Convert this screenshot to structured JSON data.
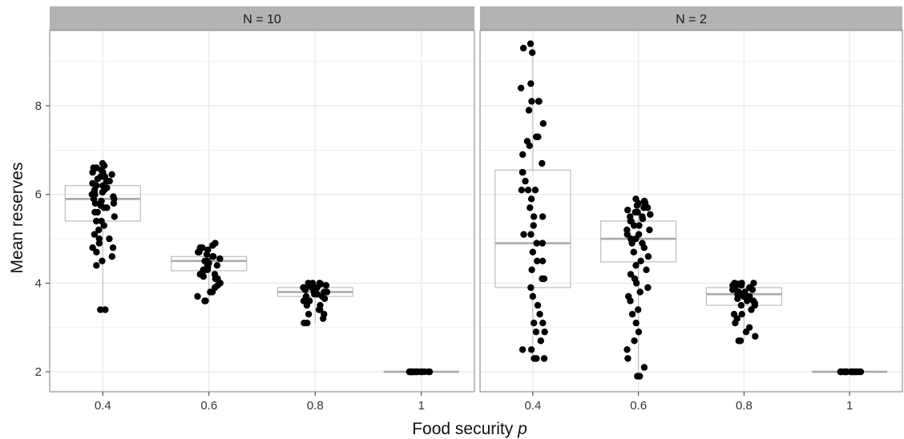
{
  "chart_data": {
    "type": "box-with-jitter",
    "xlabel": "Food security",
    "xlabel_symbol": "p",
    "ylabel": "Mean reserves",
    "ylim": [
      1.55,
      9.7
    ],
    "yticks": [
      2,
      4,
      6,
      8
    ],
    "ytick_labels": [
      "2",
      "4",
      "6",
      "8"
    ],
    "categories": [
      "0.4",
      "0.6",
      "0.8",
      "1"
    ],
    "grid": true,
    "colors": {
      "strip_bg": "#b3b3b3",
      "panel_border": "#7f7f7f",
      "grid": "#ebebeb",
      "box_line": "#bdbdbd",
      "median_line": "#a9a9a9",
      "point": "#000000"
    },
    "panels": [
      {
        "title": "N = 10",
        "boxes": [
          {
            "category": "0.4",
            "q1": 5.4,
            "median": 5.9,
            "q3": 6.2,
            "whisker_low": 3.4,
            "whisker_high": 6.7
          },
          {
            "category": "0.6",
            "q1": 4.28,
            "median": 4.5,
            "q3": 4.6,
            "whisker_low": 3.6,
            "whisker_high": 4.9
          },
          {
            "category": "0.8",
            "q1": 3.7,
            "median": 3.8,
            "q3": 3.9,
            "whisker_low": 3.1,
            "whisker_high": 4.0
          },
          {
            "category": "1",
            "q1": 2.0,
            "median": 2.0,
            "q3": 2.0,
            "whisker_low": 2.0,
            "whisker_high": 2.0
          }
        ],
        "points": [
          {
            "category": "0.4",
            "values": [
              6.7,
              6.65,
              6.6,
              6.6,
              6.55,
              6.5,
              6.5,
              6.45,
              6.4,
              6.4,
              6.35,
              6.3,
              6.3,
              6.25,
              6.2,
              6.2,
              6.15,
              6.1,
              6.1,
              6.05,
              6.0,
              6.0,
              5.95,
              5.9,
              5.9,
              5.85,
              5.8,
              5.8,
              5.75,
              5.7,
              5.7,
              5.6,
              5.6,
              5.5,
              5.4,
              5.4,
              5.3,
              5.2,
              5.1,
              5.0,
              5.0,
              4.9,
              4.8,
              4.8,
              4.7,
              4.6,
              4.5,
              4.4,
              3.4,
              3.4
            ]
          },
          {
            "category": "0.6",
            "values": [
              4.9,
              4.85,
              4.8,
              4.8,
              4.75,
              4.7,
              4.7,
              4.65,
              4.6,
              4.6,
              4.55,
              4.5,
              4.5,
              4.45,
              4.4,
              4.4,
              4.35,
              4.3,
              4.3,
              4.25,
              4.2,
              4.2,
              4.15,
              4.1,
              4.1,
              4.0,
              4.0,
              3.95,
              3.9,
              3.8,
              3.8,
              3.7,
              3.6,
              3.6
            ]
          },
          {
            "category": "0.8",
            "values": [
              4.0,
              4.0,
              4.0,
              3.98,
              3.95,
              3.95,
              3.9,
              3.9,
              3.9,
              3.85,
              3.85,
              3.8,
              3.8,
              3.8,
              3.75,
              3.75,
              3.7,
              3.7,
              3.65,
              3.6,
              3.6,
              3.5,
              3.5,
              3.4,
              3.4,
              3.3,
              3.3,
              3.2,
              3.1,
              3.1
            ]
          },
          {
            "category": "1",
            "values": [
              2.0,
              2.0,
              2.0,
              2.0,
              2.0,
              2.0,
              2.0,
              2.0,
              2.0,
              2.0,
              2.0,
              2.0,
              2.0,
              2.0,
              2.0,
              2.0,
              2.0,
              2.0,
              2.0,
              2.0
            ]
          }
        ]
      },
      {
        "title": "N = 2",
        "boxes": [
          {
            "category": "0.4",
            "q1": 3.9,
            "median": 4.9,
            "q3": 6.55,
            "whisker_low": 2.3,
            "whisker_high": 9.4
          },
          {
            "category": "0.6",
            "q1": 4.48,
            "median": 5.0,
            "q3": 5.4,
            "whisker_low": 1.9,
            "whisker_high": 5.9
          },
          {
            "category": "0.8",
            "q1": 3.5,
            "median": 3.75,
            "q3": 3.9,
            "whisker_low": 2.7,
            "whisker_high": 4.0
          },
          {
            "category": "1",
            "q1": 2.0,
            "median": 2.0,
            "q3": 2.0,
            "whisker_low": 2.0,
            "whisker_high": 2.0
          }
        ],
        "points": [
          {
            "category": "0.4",
            "values": [
              9.4,
              9.3,
              9.2,
              8.5,
              8.4,
              8.1,
              8.1,
              8.1,
              7.9,
              7.6,
              7.3,
              7.3,
              7.2,
              7.1,
              6.9,
              6.7,
              6.5,
              6.5,
              6.3,
              6.1,
              6.1,
              6.1,
              5.9,
              5.7,
              5.5,
              5.5,
              5.3,
              5.1,
              5.1,
              4.9,
              4.9,
              4.7,
              4.5,
              4.5,
              4.3,
              4.1,
              4.1,
              3.9,
              3.7,
              3.5,
              3.3,
              3.1,
              3.1,
              2.9,
              2.9,
              2.7,
              2.5,
              2.5,
              2.3,
              2.3,
              2.3
            ]
          },
          {
            "category": "0.6",
            "values": [
              5.9,
              5.85,
              5.8,
              5.8,
              5.75,
              5.7,
              5.7,
              5.65,
              5.6,
              5.6,
              5.55,
              5.5,
              5.5,
              5.45,
              5.4,
              5.4,
              5.3,
              5.3,
              5.2,
              5.2,
              5.1,
              5.1,
              5.0,
              5.0,
              4.9,
              4.9,
              4.8,
              4.7,
              4.6,
              4.5,
              4.4,
              4.3,
              4.2,
              4.1,
              4.0,
              3.9,
              3.8,
              3.7,
              3.6,
              3.4,
              3.3,
              3.1,
              2.9,
              2.7,
              2.5,
              2.3,
              2.1,
              1.9,
              1.9
            ]
          },
          {
            "category": "0.8",
            "values": [
              4.0,
              4.0,
              4.0,
              3.98,
              3.95,
              3.95,
              3.9,
              3.9,
              3.85,
              3.85,
              3.8,
              3.8,
              3.75,
              3.75,
              3.7,
              3.7,
              3.65,
              3.6,
              3.6,
              3.55,
              3.5,
              3.5,
              3.4,
              3.3,
              3.3,
              3.2,
              3.1,
              3.0,
              2.9,
              2.8,
              2.7,
              2.7
            ]
          },
          {
            "category": "1",
            "values": [
              2.0,
              2.0,
              2.0,
              2.0,
              2.0,
              2.0,
              2.0,
              2.0,
              2.0,
              2.0,
              2.0,
              2.0,
              2.0,
              2.0,
              2.0,
              2.0,
              2.0,
              2.0,
              2.0,
              2.0
            ]
          }
        ]
      }
    ]
  }
}
